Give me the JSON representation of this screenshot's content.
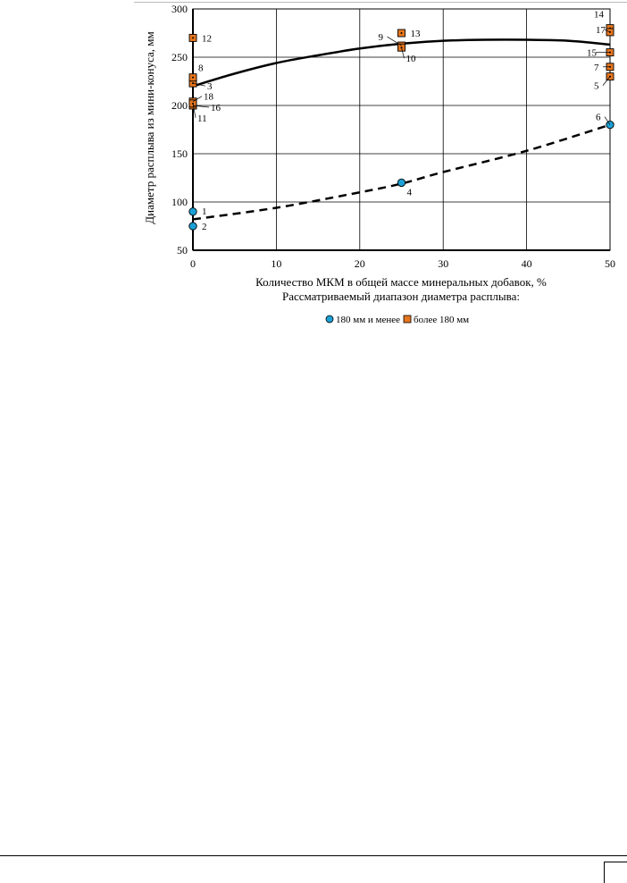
{
  "chart_data": {
    "type": "scatter",
    "title": "",
    "xlabel": "Количество МКМ в общей массе минеральных добавок, %",
    "xlabel2": "Рассматриваемый диапазон диаметра расплыва:",
    "ylabel": "Диаметр расплыва из мини-конуса, мм",
    "xlim": [
      0,
      50
    ],
    "ylim": [
      50,
      300
    ],
    "x_ticks": [
      0,
      10,
      20,
      30,
      40,
      50
    ],
    "y_ticks": [
      50,
      100,
      150,
      200,
      250,
      300
    ],
    "grid": true,
    "legend_position": "bottom",
    "series": [
      {
        "name": "180 мм и менее",
        "marker": "circle",
        "color": "#1ba1d6",
        "points": [
          {
            "x": 0,
            "y": 90,
            "label": "1"
          },
          {
            "x": 0,
            "y": 75,
            "label": "2"
          },
          {
            "x": 25,
            "y": 120,
            "label": "4"
          },
          {
            "x": 50,
            "y": 180,
            "label": "6"
          }
        ],
        "trend": {
          "style": "dashed",
          "x": [
            0,
            10,
            20,
            25,
            30,
            40,
            50
          ],
          "y": [
            82,
            94,
            110,
            119,
            131,
            153,
            180
          ]
        }
      },
      {
        "name": "более 180 мм",
        "marker": "square",
        "color": "#e6761e",
        "points": [
          {
            "x": 0,
            "y": 223,
            "label": "3"
          },
          {
            "x": 0,
            "y": 229,
            "label": "8"
          },
          {
            "x": 0,
            "y": 270,
            "label": "12"
          },
          {
            "x": 0,
            "y": 204,
            "label": "18"
          },
          {
            "x": 0,
            "y": 200,
            "label": "16"
          },
          {
            "x": 0,
            "y": 202,
            "label": "11"
          },
          {
            "x": 25,
            "y": 275,
            "label": "13"
          },
          {
            "x": 25,
            "y": 262,
            "label": "9"
          },
          {
            "x": 25,
            "y": 260,
            "label": "10"
          },
          {
            "x": 50,
            "y": 280,
            "label": "14"
          },
          {
            "x": 50,
            "y": 276,
            "label": "17"
          },
          {
            "x": 50,
            "y": 255,
            "label": "15"
          },
          {
            "x": 50,
            "y": 240,
            "label": "7"
          },
          {
            "x": 50,
            "y": 230,
            "label": "5"
          }
        ],
        "trend": {
          "style": "solid",
          "x": [
            0,
            5,
            10,
            15,
            20,
            25,
            30,
            35,
            40,
            45,
            50
          ],
          "y": [
            220,
            233,
            244,
            252,
            259,
            264,
            267,
            268,
            268,
            267,
            263
          ]
        }
      }
    ]
  }
}
